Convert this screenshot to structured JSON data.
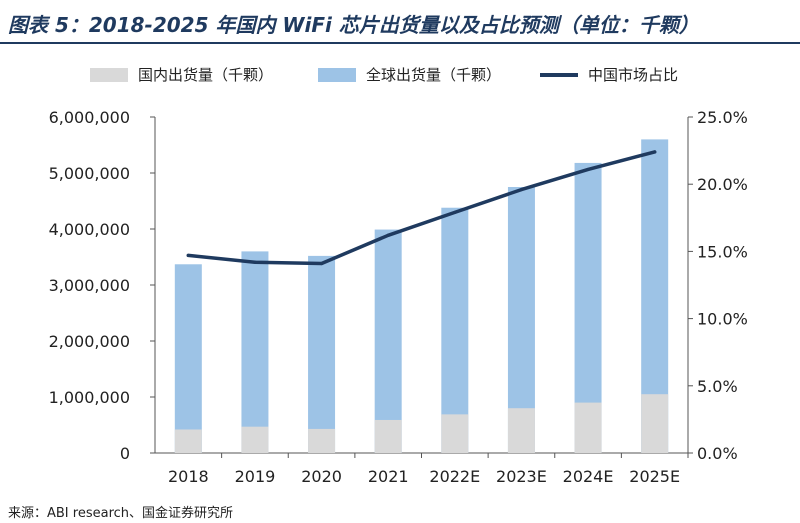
{
  "header": {
    "title": "图表 5：2018-2025 年国内 WiFi 芯片出货量以及占比预测（单位：千颗）"
  },
  "footer": {
    "source": "来源：ABI research、国金证券研究所"
  },
  "chart_data": {
    "type": "bar",
    "title": "图表 5：2018-2025 年国内 WiFi 芯片出货量以及占比预测（单位：千颗）",
    "categories": [
      "2018",
      "2019",
      "2020",
      "2021",
      "2022E",
      "2023E",
      "2024E",
      "2025E"
    ],
    "series": [
      {
        "name": "国内出货量（千颗）",
        "type": "bar",
        "axis": "left",
        "color": "#d9d9d9",
        "values": [
          420000,
          470000,
          430000,
          590000,
          690000,
          800000,
          900000,
          1050000
        ]
      },
      {
        "name": "全球出货量（千颗）",
        "type": "bar",
        "axis": "left",
        "color": "#9dc3e6",
        "values": [
          3370000,
          3600000,
          3520000,
          3990000,
          4380000,
          4750000,
          5180000,
          5600000
        ]
      },
      {
        "name": "中国市场占比",
        "type": "line",
        "axis": "right",
        "color": "#1f3a5f",
        "values": [
          14.7,
          14.2,
          14.1,
          16.2,
          17.9,
          19.6,
          21.1,
          22.4
        ]
      }
    ],
    "y_left": {
      "min": 0,
      "max": 6000000,
      "step": 1000000,
      "ticks": [
        "0",
        "1,000,000",
        "2,000,000",
        "3,000,000",
        "4,000,000",
        "5,000,000",
        "6,000,000"
      ]
    },
    "y_right": {
      "min": 0,
      "max": 25,
      "step": 5,
      "ticks": [
        "0.0%",
        "5.0%",
        "10.0%",
        "15.0%",
        "20.0%",
        "25.0%"
      ]
    },
    "grid": false,
    "legend_position": "top"
  }
}
